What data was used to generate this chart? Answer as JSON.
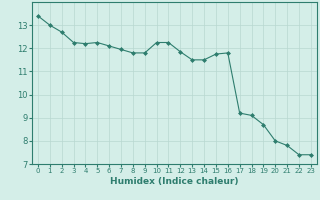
{
  "xlabel": "Humidex (Indice chaleur)",
  "x": [
    0,
    1,
    2,
    3,
    4,
    5,
    6,
    7,
    8,
    9,
    10,
    11,
    12,
    13,
    14,
    15,
    16,
    17,
    18,
    19,
    20,
    21,
    22,
    23
  ],
  "y": [
    13.4,
    13.0,
    12.7,
    12.25,
    12.2,
    12.25,
    12.1,
    11.95,
    11.8,
    11.8,
    12.25,
    12.25,
    11.85,
    11.5,
    11.5,
    11.75,
    11.8,
    9.2,
    9.1,
    8.7,
    8.0,
    7.8,
    7.4,
    7.4
  ],
  "line_color": "#2e7d6e",
  "marker": "D",
  "marker_size": 2,
  "bg_color": "#d4eee8",
  "grid_color": "#b8d8d0",
  "axis_color": "#2e7d6e",
  "ylim": [
    7,
    14
  ],
  "xlim": [
    -0.5,
    23.5
  ],
  "yticks": [
    7,
    8,
    9,
    10,
    11,
    12,
    13
  ],
  "xticks": [
    0,
    1,
    2,
    3,
    4,
    5,
    6,
    7,
    8,
    9,
    10,
    11,
    12,
    13,
    14,
    15,
    16,
    17,
    18,
    19,
    20,
    21,
    22,
    23
  ]
}
